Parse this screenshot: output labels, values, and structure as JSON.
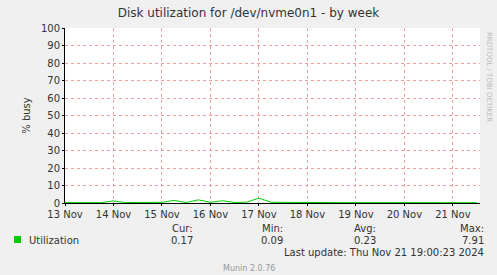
{
  "chart_data": {
    "type": "line",
    "title": "Disk utilization for /dev/nvme0n1 - by week",
    "y_label": "% busy",
    "x": [
      0,
      0.25,
      0.5,
      0.75,
      1.0,
      1.25,
      1.5,
      1.75,
      2.0,
      2.25,
      2.5,
      2.75,
      3.0,
      3.25,
      3.5,
      3.75,
      4.0,
      4.25,
      4.5,
      4.75,
      5.0,
      5.25,
      5.5,
      5.75,
      6.0,
      6.25,
      6.5,
      6.75,
      7.0,
      7.25,
      7.5,
      7.75,
      8.0,
      8.25,
      8.5
    ],
    "series": [
      {
        "name": "Utilization",
        "color": "#00cc00",
        "values": [
          0.2,
          0.2,
          0.3,
          0.2,
          1.2,
          0.2,
          0.3,
          0.2,
          0.4,
          1.5,
          0.3,
          1.8,
          0.4,
          1.3,
          0.3,
          0.5,
          2.8,
          0.4,
          0.3,
          0.2,
          0.3,
          0.2,
          0.3,
          0.2,
          0.2,
          0.2,
          0.3,
          0.2,
          0.3,
          0.2,
          0.2,
          0.3,
          0.2,
          0.3,
          0.17
        ]
      }
    ],
    "xlim": [
      0,
      8.56
    ],
    "xticks": [
      {
        "value": 0,
        "label": "13 Nov"
      },
      {
        "value": 1,
        "label": "14 Nov"
      },
      {
        "value": 2,
        "label": "15 Nov"
      },
      {
        "value": 3,
        "label": "16 Nov"
      },
      {
        "value": 4,
        "label": "17 Nov"
      },
      {
        "value": 5,
        "label": "18 Nov"
      },
      {
        "value": 6,
        "label": "19 Nov"
      },
      {
        "value": 7,
        "label": "20 Nov"
      },
      {
        "value": 8,
        "label": "21 Nov"
      }
    ],
    "ylim": [
      0,
      100
    ],
    "yticks": [
      0,
      10,
      20,
      30,
      40,
      50,
      60,
      70,
      80,
      90,
      100
    ],
    "grid": true,
    "summary": [
      {
        "label": "Cur:",
        "value": 0.17
      },
      {
        "label": "Min:",
        "value": 0.09
      },
      {
        "label": "Avg:",
        "value": 0.23
      },
      {
        "label": "Max:",
        "value": 7.91
      }
    ],
    "footer": "Last update: Thu Nov 21 19:00:23 2024",
    "credit": "Munin 2.0.76",
    "watermark": "RRDTOOL / TOBI OETIKER"
  }
}
